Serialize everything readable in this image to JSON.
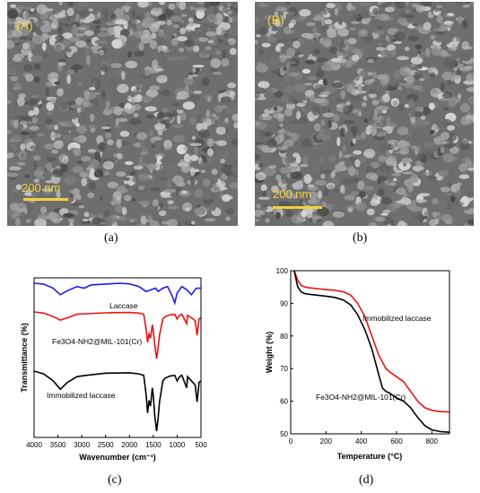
{
  "captions": [
    "(a)",
    "(b)",
    "(c)",
    "(d)"
  ],
  "sem": [
    {
      "tag": "(A)",
      "scalebar": "200 nm"
    },
    {
      "tag": "(B)",
      "scalebar": "200 nm"
    }
  ],
  "chart_data": [
    {
      "type": "line",
      "xlabel": "Wavenumber (cm⁻¹)",
      "ylabel": "Transmittance (%)",
      "xlim": [
        4000,
        500
      ],
      "x_ticks": [
        4000,
        3500,
        3000,
        2500,
        2000,
        1500,
        1000,
        500
      ],
      "x_tick_labels": [
        "4000",
        "3500",
        "3000",
        "2500",
        "2000",
        "1500",
        "1000",
        "500"
      ],
      "colors": [
        "#1a1aee",
        "#ee1111",
        "#000000"
      ],
      "series": [
        {
          "name": "Laccase",
          "x": [
            4000,
            3800,
            3600,
            3450,
            3300,
            3100,
            2950,
            2800,
            2500,
            2200,
            2000,
            1800,
            1650,
            1550,
            1450,
            1400,
            1300,
            1200,
            1100,
            1050,
            1000,
            900,
            800,
            700,
            600,
            500
          ],
          "y": [
            100,
            99.5,
            97,
            93,
            95.5,
            98,
            97,
            99,
            99.5,
            100,
            99.6,
            98,
            95,
            96,
            97,
            95,
            97,
            98,
            92,
            88,
            94,
            98,
            96,
            93,
            97,
            97
          ]
        },
        {
          "name": "Fe3O4-NH2@MIL-101(Cr)",
          "x": [
            4000,
            3800,
            3600,
            3450,
            3300,
            3100,
            2900,
            2500,
            2000,
            1800,
            1700,
            1650,
            1620,
            1590,
            1560,
            1520,
            1500,
            1470,
            1430,
            1400,
            1370,
            1300,
            1250,
            1150,
            1050,
            1000,
            950,
            900,
            800,
            780,
            700,
            620,
            580,
            540,
            500
          ],
          "y": [
            100,
            98,
            92,
            86,
            90,
            96,
            97,
            98.5,
            99,
            98,
            96,
            70,
            48,
            62,
            55,
            78,
            68,
            44,
            20,
            38,
            60,
            88,
            92,
            95,
            96,
            88,
            94,
            96,
            80,
            94,
            90,
            85,
            60,
            88,
            90
          ]
        },
        {
          "name": "Immobilized laccase",
          "x": [
            4000,
            3800,
            3600,
            3450,
            3300,
            3100,
            2900,
            2500,
            2000,
            1800,
            1700,
            1650,
            1620,
            1590,
            1560,
            1520,
            1500,
            1470,
            1430,
            1400,
            1370,
            1300,
            1250,
            1150,
            1050,
            1000,
            950,
            900,
            800,
            780,
            700,
            620,
            580,
            540,
            500
          ],
          "y": [
            100,
            96,
            86,
            74,
            84,
            92,
            94,
            97,
            97.5,
            96,
            94,
            66,
            40,
            58,
            50,
            76,
            64,
            36,
            14,
            32,
            56,
            86,
            90,
            93,
            94,
            86,
            92,
            94,
            76,
            92,
            86,
            80,
            56,
            84,
            86
          ]
        }
      ],
      "annotations": [
        "Laccase",
        "Fe3O4-NH2@MIL-101(Cr)",
        "Immobilized laccase"
      ]
    },
    {
      "type": "line",
      "xlabel": "Temperature (°C)",
      "ylabel": "Weight (%)",
      "xlim": [
        0,
        900
      ],
      "ylim": [
        50,
        100
      ],
      "x_ticks": [
        0,
        200,
        400,
        600,
        800
      ],
      "y_ticks": [
        50,
        60,
        70,
        80,
        90,
        100
      ],
      "colors": [
        "#ee1111",
        "#000000"
      ],
      "series": [
        {
          "name": "Immobilized laccase",
          "x": [
            20,
            40,
            60,
            80,
            100,
            150,
            200,
            250,
            300,
            340,
            380,
            420,
            460,
            500,
            540,
            560,
            600,
            640,
            680,
            720,
            760,
            800,
            850,
            900
          ],
          "y": [
            100,
            97,
            95.5,
            95,
            94.8,
            94.5,
            94.2,
            94,
            93.5,
            92.5,
            90,
            86,
            80,
            74,
            70,
            69,
            67.5,
            66,
            63,
            60,
            58,
            57.2,
            56.8,
            56.7
          ]
        },
        {
          "name": "Fe3O4-NH2@MIL-101(Cr)",
          "x": [
            20,
            40,
            60,
            80,
            100,
            150,
            200,
            250,
            300,
            340,
            380,
            420,
            460,
            500,
            520,
            540,
            560,
            600,
            640,
            680,
            720,
            760,
            800,
            850,
            900
          ],
          "y": [
            100,
            95,
            93.5,
            93,
            92.8,
            92.5,
            92.2,
            91.8,
            91,
            89.5,
            86.5,
            82,
            76,
            68,
            64,
            63,
            62.5,
            61,
            60,
            58,
            55,
            52.5,
            51.2,
            50.7,
            50.5
          ]
        }
      ],
      "annotations": [
        "Immobilized laccase",
        "Fe3O4-NH2@MIL-101(Cr)"
      ]
    }
  ]
}
